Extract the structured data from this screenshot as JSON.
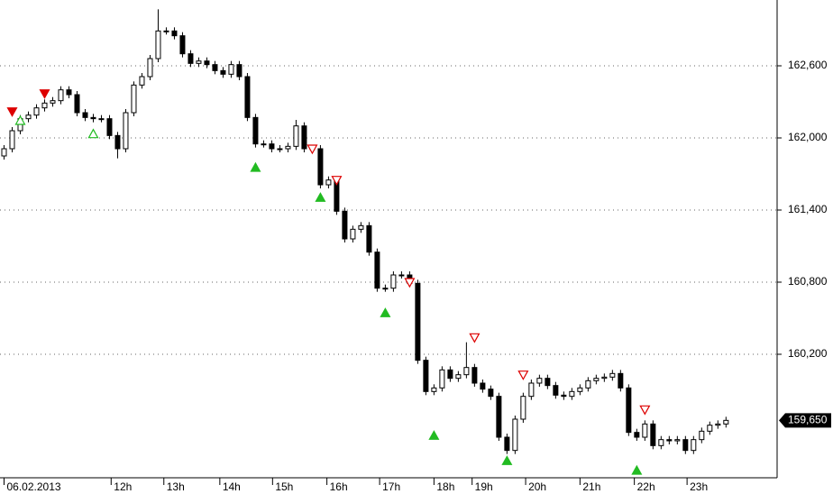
{
  "chart_data": {
    "type": "candlestick",
    "xlim": [
      -0.5,
      95.3
    ],
    "ylim": [
      159172.5,
      163147.5
    ],
    "grid": true,
    "up_color": "#ffffff",
    "down_color": "#000000",
    "xticks": [
      {
        "value": 0,
        "label": "06.02.2013"
      },
      {
        "value": 13.2,
        "label": "12h"
      },
      {
        "value": 19.7,
        "label": "13h"
      },
      {
        "value": 26.6,
        "label": "14h"
      },
      {
        "value": 33.1,
        "label": "15h"
      },
      {
        "value": 39.8,
        "label": "16h"
      },
      {
        "value": 46.3,
        "label": "17h"
      },
      {
        "value": 53,
        "label": "18h"
      },
      {
        "value": 57.7,
        "label": "19h"
      },
      {
        "value": 64.3,
        "label": "20h"
      },
      {
        "value": 71,
        "label": "21h"
      },
      {
        "value": 77.7,
        "label": "22h"
      },
      {
        "value": 84.2,
        "label": "23h"
      }
    ],
    "yticks": [
      {
        "value": 160200,
        "label": "160,200"
      },
      {
        "value": 160800,
        "label": "160,800"
      },
      {
        "value": 161400,
        "label": "161,400"
      },
      {
        "value": 162000,
        "label": "162,000"
      },
      {
        "value": 162600,
        "label": "162,600"
      }
    ],
    "last_price": {
      "value": 159650,
      "label": "159,650"
    },
    "open": [
      161850,
      161910,
      162060,
      162160,
      162190,
      162250,
      162290,
      162310,
      162400,
      162360,
      162210,
      162170,
      162160,
      162160,
      162020,
      161910,
      162210,
      162440,
      162510,
      162660,
      162890,
      162890,
      162850,
      162700,
      162620,
      162640,
      162610,
      162560,
      162530,
      162610,
      162510,
      162170,
      161950,
      161950,
      161910,
      161910,
      161930,
      162100,
      161910,
      161910,
      161610,
      161650,
      161390,
      161160,
      161240,
      161270,
      161050,
      160750,
      160750,
      160860,
      160860,
      160790,
      160150,
      159890,
      159920,
      160070,
      160000,
      160030,
      160090,
      159960,
      159910,
      159850,
      159510,
      159400,
      159660,
      159850,
      159960,
      160000,
      159940,
      159860,
      159850,
      159890,
      159920,
      159980,
      160000,
      160010,
      160040,
      159920,
      159550,
      159510,
      159620,
      159440,
      159490,
      159480,
      159490,
      159400,
      159490,
      159560,
      159610,
      159620
    ],
    "high": [
      161940,
      162090,
      162190,
      162220,
      162280,
      162320,
      162340,
      162430,
      162430,
      162390,
      162240,
      162200,
      162190,
      162190,
      162050,
      162240,
      162470,
      162540,
      162690,
      163070,
      162920,
      162920,
      162880,
      162730,
      162670,
      162670,
      162640,
      162590,
      162640,
      162640,
      162540,
      162200,
      161980,
      161980,
      161940,
      161960,
      162150,
      162130,
      161940,
      161940,
      161680,
      161680,
      161420,
      161270,
      161300,
      161300,
      161080,
      160780,
      160890,
      160890,
      160890,
      160820,
      160180,
      159950,
      160100,
      160100,
      160060,
      160300,
      160120,
      159990,
      159940,
      159880,
      159540,
      159690,
      159880,
      159990,
      160030,
      160030,
      159970,
      159890,
      159920,
      159950,
      160010,
      160030,
      160040,
      160070,
      160070,
      159950,
      159580,
      159650,
      159650,
      159520,
      159520,
      159520,
      159520,
      159520,
      159590,
      159640,
      159650,
      159680
    ],
    "low": [
      161820,
      161880,
      162030,
      162130,
      162160,
      162220,
      162260,
      162280,
      162330,
      162180,
      162140,
      162130,
      162130,
      161990,
      161830,
      161880,
      162180,
      162410,
      162480,
      162630,
      162860,
      162820,
      162670,
      162590,
      162590,
      162580,
      162530,
      162500,
      162500,
      162480,
      162140,
      161920,
      161920,
      161880,
      161880,
      161880,
      161900,
      161880,
      161880,
      161580,
      161580,
      161360,
      161130,
      161130,
      161210,
      161020,
      160720,
      160720,
      160720,
      160830,
      160760,
      160120,
      159860,
      159860,
      159890,
      159970,
      159970,
      160000,
      159930,
      159880,
      159820,
      159480,
      159370,
      159370,
      159630,
      159820,
      159930,
      159910,
      159830,
      159820,
      159820,
      159860,
      159890,
      159950,
      159970,
      159980,
      159890,
      159520,
      159480,
      159480,
      159410,
      159410,
      159450,
      159450,
      159370,
      159370,
      159460,
      159530,
      159580,
      159590
    ],
    "close": [
      161910,
      162060,
      162160,
      162190,
      162250,
      162290,
      162310,
      162400,
      162360,
      162210,
      162170,
      162160,
      162160,
      162020,
      161910,
      162210,
      162440,
      162510,
      162660,
      162890,
      162890,
      162850,
      162700,
      162620,
      162640,
      162610,
      162560,
      162530,
      162610,
      162510,
      162170,
      161950,
      161950,
      161910,
      161910,
      161930,
      162100,
      161910,
      161910,
      161610,
      161650,
      161390,
      161160,
      161240,
      161270,
      161050,
      160750,
      160750,
      160860,
      160860,
      160790,
      160150,
      159890,
      159920,
      160070,
      160000,
      160030,
      160090,
      159960,
      159910,
      159850,
      159510,
      159400,
      159660,
      159850,
      159960,
      160000,
      159940,
      159860,
      159850,
      159890,
      159920,
      159980,
      160000,
      160010,
      160040,
      159920,
      159550,
      159510,
      159620,
      159440,
      159490,
      159480,
      159490,
      159400,
      159490,
      159560,
      159610,
      159620,
      159650
    ],
    "signals": [
      {
        "x": 1,
        "price": 162220,
        "side": "sell",
        "filled": true
      },
      {
        "x": 5,
        "price": 162370,
        "side": "sell",
        "filled": true
      },
      {
        "x": 2,
        "price": 162150,
        "side": "buy",
        "filled": false
      },
      {
        "x": 11,
        "price": 162040,
        "side": "buy",
        "filled": false
      },
      {
        "x": 38,
        "price": 161910,
        "side": "sell",
        "filled": false
      },
      {
        "x": 41,
        "price": 161650,
        "side": "sell",
        "filled": false
      },
      {
        "x": 50,
        "price": 160800,
        "side": "sell",
        "filled": false
      },
      {
        "x": 58,
        "price": 160340,
        "side": "sell",
        "filled": false
      },
      {
        "x": 64,
        "price": 160030,
        "side": "sell",
        "filled": false
      },
      {
        "x": 79,
        "price": 159740,
        "side": "sell",
        "filled": false
      },
      {
        "x": 31,
        "price": 161760,
        "side": "buy",
        "filled": true
      },
      {
        "x": 39,
        "price": 161510,
        "side": "buy",
        "filled": true
      },
      {
        "x": 47,
        "price": 160550,
        "side": "buy",
        "filled": true
      },
      {
        "x": 53,
        "price": 159530,
        "side": "buy",
        "filled": true
      },
      {
        "x": 62,
        "price": 159320,
        "side": "buy",
        "filled": true
      },
      {
        "x": 78,
        "price": 159240,
        "side": "buy",
        "filled": true
      }
    ],
    "sell_color": "#dd0000",
    "buy_color": "#22bb22"
  }
}
